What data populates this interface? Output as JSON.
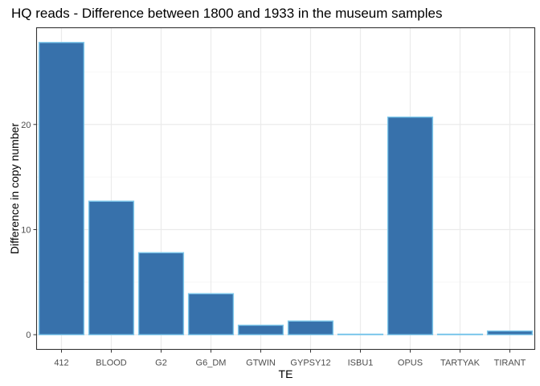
{
  "chart_data": {
    "type": "bar",
    "title": "HQ reads - Difference between 1800 and 1933 in the museum samples",
    "xlabel": "TE",
    "ylabel": "Difference in copy number",
    "categories": [
      "412",
      "BLOOD",
      "G2",
      "G6_DM",
      "GTWIN",
      "GYPSY12",
      "ISBU1",
      "OPUS",
      "TARTYAK",
      "TIRANT"
    ],
    "values": [
      27.8,
      12.7,
      7.8,
      3.9,
      0.9,
      1.3,
      0.05,
      20.7,
      0.05,
      0.35
    ],
    "ylim": [
      -1.4,
      29.2
    ],
    "yticks": [
      0,
      10,
      20
    ],
    "grid": true,
    "legend": "none",
    "colors": {
      "bar_fill": "#3771ab",
      "bar_outline": "#7ec8eb",
      "grid_major": "#ebebeb",
      "grid_minor": "#f5f5f5",
      "panel_border": "#333333",
      "tick_text": "#4d4d4d"
    }
  }
}
